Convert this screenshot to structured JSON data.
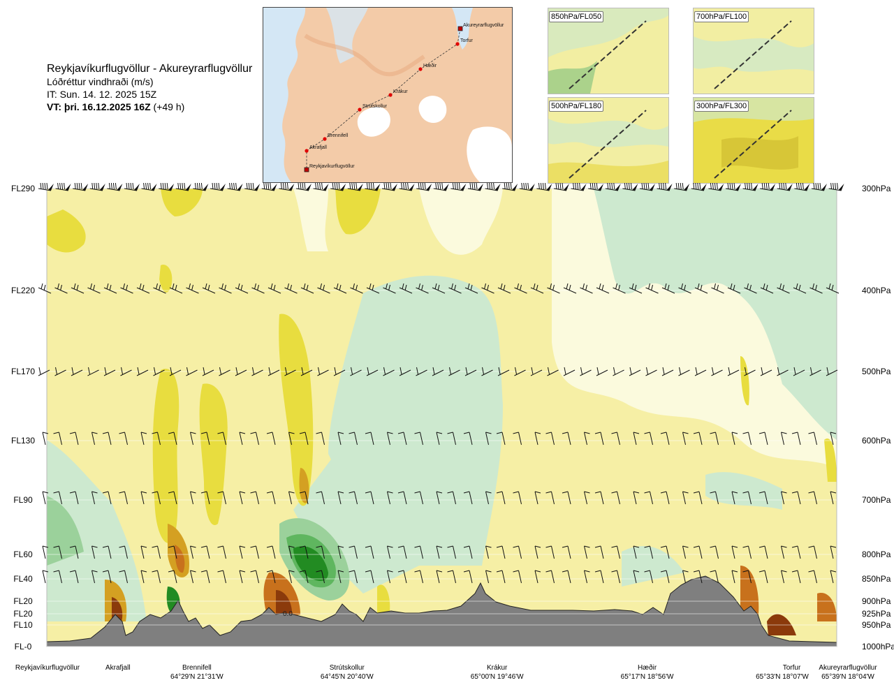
{
  "header": {
    "route": "Reykjavíkurflugvöllur - Akureyrarflugvöllur",
    "parameter": "Lóðréttur vindhraði (m/s)",
    "issue_time": "IT: Sun. 14. 12. 2025 15Z",
    "valid_time": "VT: þri. 16.12.2025 16Z",
    "lead_time": "(+49 h)"
  },
  "route_map": {
    "points": [
      {
        "name": "Akureyrarflugvöllur",
        "type": "airport"
      },
      {
        "name": "Torfur",
        "type": "waypoint"
      },
      {
        "name": "Hæðir",
        "type": "waypoint"
      },
      {
        "name": "Krákur",
        "type": "waypoint"
      },
      {
        "name": "Strútskollur",
        "type": "waypoint"
      },
      {
        "name": "Brennifell",
        "type": "waypoint"
      },
      {
        "name": "Akrafjall",
        "type": "waypoint"
      },
      {
        "name": "Reykjavíkurflugvöllur",
        "type": "airport"
      }
    ]
  },
  "insets": [
    {
      "label": "850hPa/FL050"
    },
    {
      "label": "700hPa/FL100"
    },
    {
      "label": "500hPa/FL180"
    },
    {
      "label": "300hPa/FL300"
    }
  ],
  "chart_data": {
    "type": "heatmap",
    "title": "Lóðréttur vindhraði (m/s)",
    "levels": [
      {
        "fl": "FL290",
        "hpa": "300hPa",
        "p": 300,
        "barbs": true
      },
      {
        "fl": "FL220",
        "hpa": "400hPa",
        "p": 400,
        "barbs": true
      },
      {
        "fl": "FL170",
        "hpa": "500hPa",
        "p": 500,
        "barbs": true
      },
      {
        "fl": "FL130",
        "hpa": "600hPa",
        "p": 600,
        "barbs": true
      },
      {
        "fl": "FL90",
        "hpa": "700hPa",
        "p": 700,
        "barbs": true
      },
      {
        "fl": "FL60",
        "hpa": "800hPa",
        "p": 800,
        "barbs": true
      },
      {
        "fl": "FL40",
        "hpa": "850hPa",
        "p": 850,
        "barbs": true
      },
      {
        "fl": "FL20",
        "hpa": "900hPa",
        "p": 900,
        "barbs": false
      },
      {
        "fl": "FL20",
        "hpa": "925hPa",
        "p": 925,
        "barbs": false
      },
      {
        "fl": "FL10",
        "hpa": "950hPa",
        "p": 950,
        "barbs": false
      },
      {
        "fl": "FL-0",
        "hpa": "1000hPa",
        "p": 1000,
        "barbs": false
      }
    ],
    "stations": [
      {
        "name": "Reykjavíkurflugvöllur",
        "coord": "",
        "dist": 0.0
      },
      {
        "name": "Akrafjall",
        "coord": "",
        "dist": 0.09
      },
      {
        "name": "Brennifell",
        "coord": "64°29'N 21°31'W",
        "dist": 0.19
      },
      {
        "name": "Strútskollur",
        "coord": "64°45'N 20°40'W",
        "dist": 0.38
      },
      {
        "name": "Krákur",
        "coord": "65°00'N 19°46'W",
        "dist": 0.57
      },
      {
        "name": "Hæðir",
        "coord": "65°17'N 18°56'W",
        "dist": 0.76
      },
      {
        "name": "Torfur",
        "coord": "65°33'N 18°07'W",
        "dist": 0.943
      },
      {
        "name": "Akureyrarflugvöllur",
        "coord": "65°39'N 18°04'W",
        "dist": 1.0
      }
    ],
    "annotation": "0.0",
    "colors": {
      "sinking_strong": "#8b3a0b",
      "sinking_mid": "#c8711c",
      "sinking_light": "#e8c21d",
      "sinking_weak": "#ece24a",
      "neutral": "#f6efa5",
      "neutral_pale": "#fbfadd",
      "rising_weak": "#cde9cf",
      "rising_light": "#9bd19b",
      "rising_mid": "#5fb65f",
      "rising_strong": "#228b22",
      "terrain": "#7f7f7f",
      "water": "#d4e7f5"
    }
  }
}
